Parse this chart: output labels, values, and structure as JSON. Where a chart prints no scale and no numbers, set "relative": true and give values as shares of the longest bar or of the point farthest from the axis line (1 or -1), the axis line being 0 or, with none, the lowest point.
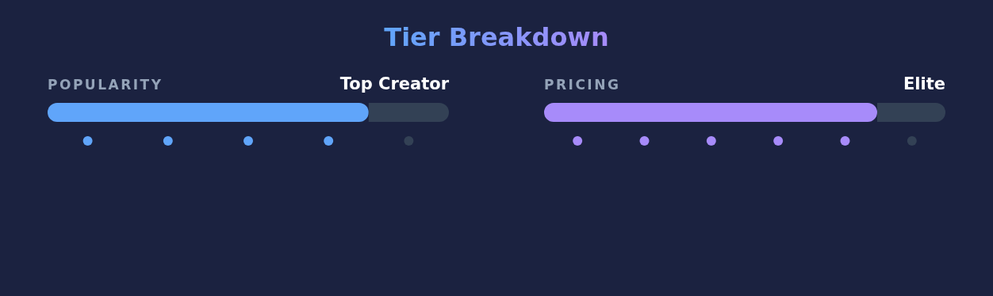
{
  "chart_data": [
    {
      "type": "other",
      "title": "Tier Breakdown"
    },
    {
      "type": "bar",
      "title": "POPULARITY",
      "subtitle": "Top Creator",
      "orientation": "horizontal",
      "stacked": true,
      "relative": true,
      "categories": [
        null
      ],
      "series": [
        {
          "color": "#60a5fa",
          "values": [
            0.8
          ]
        },
        {
          "color": "#334155",
          "values": [
            0.2
          ]
        }
      ]
    },
    {
      "type": "bar",
      "title": "PRICING",
      "subtitle": "Elite",
      "orientation": "horizontal",
      "stacked": true,
      "relative": true,
      "categories": [
        null
      ],
      "series": [
        {
          "color": "#a78bfa",
          "values": [
            0.83
          ]
        },
        {
          "color": "#334155",
          "values": [
            0.17
          ]
        }
      ]
    }
  ]
}
